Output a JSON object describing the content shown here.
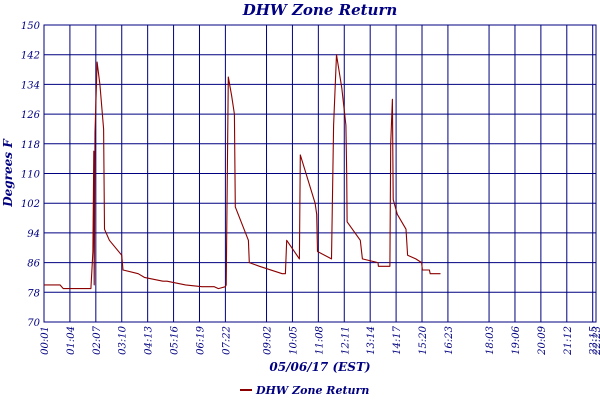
{
  "chart_data": {
    "type": "line",
    "title": "DHW Zone Return",
    "xlabel": "05/06/17 (EST)",
    "ylabel": "Degrees F",
    "ylim": [
      70,
      150
    ],
    "yticks": [
      70,
      78,
      86,
      94,
      102,
      110,
      118,
      126,
      134,
      142,
      150
    ],
    "xlim": [
      "00:01",
      "22:23"
    ],
    "xticks": [
      "00:01",
      "01:04",
      "02:07",
      "03:10",
      "04:13",
      "05:16",
      "06:19",
      "07:22",
      "09:02",
      "10:05",
      "11:08",
      "12:11",
      "13:14",
      "14:17",
      "15:20",
      "16:23",
      "18:03",
      "19:06",
      "20:09",
      "21:12",
      "22:15",
      "22:23"
    ],
    "grid": true,
    "legend": "bottom",
    "series": [
      {
        "name": "DHW Zone Return",
        "color": "#8b0000",
        "points": [
          [
            "00:01",
            80
          ],
          [
            "00:40",
            80
          ],
          [
            "00:48",
            79
          ],
          [
            "01:55",
            79
          ],
          [
            "02:00",
            89
          ],
          [
            "02:02",
            116
          ],
          [
            "02:03",
            80
          ],
          [
            "02:05",
            121
          ],
          [
            "02:10",
            140
          ],
          [
            "02:17",
            134
          ],
          [
            "02:26",
            122
          ],
          [
            "02:28",
            95
          ],
          [
            "02:40",
            92
          ],
          [
            "03:10",
            88
          ],
          [
            "03:13",
            84
          ],
          [
            "03:50",
            83
          ],
          [
            "04:05",
            82
          ],
          [
            "04:50",
            81
          ],
          [
            "05:00",
            81
          ],
          [
            "05:45",
            80
          ],
          [
            "06:25",
            79.5
          ],
          [
            "06:55",
            79.5
          ],
          [
            "07:05",
            79
          ],
          [
            "07:22",
            79.5
          ],
          [
            "07:24",
            80
          ],
          [
            "07:29",
            136
          ],
          [
            "07:37",
            131
          ],
          [
            "07:44",
            126
          ],
          [
            "07:46",
            101
          ],
          [
            "08:18",
            92
          ],
          [
            "08:20",
            86
          ],
          [
            "08:45",
            85
          ],
          [
            "09:40",
            83
          ],
          [
            "09:48",
            83
          ],
          [
            "09:51",
            92
          ],
          [
            "10:22",
            87
          ],
          [
            "10:24",
            115
          ],
          [
            "11:00",
            102
          ],
          [
            "11:04",
            99
          ],
          [
            "11:06",
            89
          ],
          [
            "11:40",
            87
          ],
          [
            "11:45",
            123
          ],
          [
            "11:52",
            142
          ],
          [
            "12:05",
            133
          ],
          [
            "12:15",
            123
          ],
          [
            "12:17",
            110
          ],
          [
            "12:18",
            97
          ],
          [
            "12:50",
            92
          ],
          [
            "12:55",
            87
          ],
          [
            "13:33",
            86
          ],
          [
            "13:34",
            85
          ],
          [
            "14:02",
            85
          ],
          [
            "14:04",
            118
          ],
          [
            "14:08",
            130
          ],
          [
            "14:10",
            103
          ],
          [
            "14:20",
            99
          ],
          [
            "14:41",
            95
          ],
          [
            "14:45",
            88
          ],
          [
            "15:05",
            87
          ],
          [
            "15:19",
            86
          ],
          [
            "15:21",
            84
          ],
          [
            "15:38",
            84
          ],
          [
            "15:40",
            83
          ],
          [
            "16:05",
            83
          ]
        ]
      }
    ]
  }
}
